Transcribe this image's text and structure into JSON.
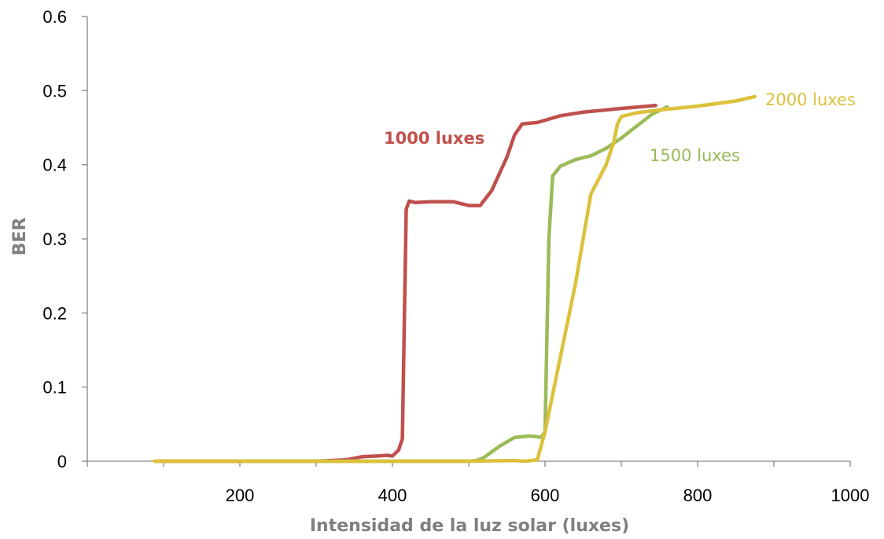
{
  "chart_data": {
    "type": "line",
    "title": "",
    "xlabel": "Intensidad de la luz solar (luxes)",
    "ylabel": "BER",
    "xlim": [
      0,
      1000
    ],
    "ylim": [
      0,
      0.6
    ],
    "x_ticks": [
      200,
      400,
      600,
      800,
      1000
    ],
    "y_ticks": [
      "0",
      "0.1",
      "0.2",
      "0.3",
      "0.4",
      "0.5",
      "0.6"
    ],
    "grid": false,
    "legend": "none (series labelled directly on the plot)",
    "series": [
      {
        "name": "1000 luxes",
        "color": "#c0504d",
        "x": [
          90,
          190,
          300,
          340,
          360,
          380,
          393,
          400,
          408,
          413,
          415,
          418,
          422,
          430,
          450,
          480,
          500,
          515,
          530,
          550,
          560,
          570,
          590,
          620,
          650,
          700,
          745
        ],
        "y": [
          0.0,
          0.0,
          0.0,
          0.002,
          0.006,
          0.007,
          0.008,
          0.007,
          0.015,
          0.03,
          0.15,
          0.34,
          0.351,
          0.349,
          0.35,
          0.35,
          0.345,
          0.345,
          0.365,
          0.41,
          0.44,
          0.455,
          0.457,
          0.466,
          0.471,
          0.476,
          0.48
        ]
      },
      {
        "name": "1500 luxes",
        "color": "#9bbb59",
        "x": [
          190,
          300,
          400,
          500,
          510,
          520,
          540,
          560,
          580,
          590,
          595,
          600,
          605,
          610,
          620,
          640,
          660,
          680,
          700,
          720,
          740,
          760
        ],
        "y": [
          0.0,
          0.0,
          0.0,
          0.0,
          0.001,
          0.005,
          0.02,
          0.032,
          0.034,
          0.033,
          0.032,
          0.04,
          0.3,
          0.385,
          0.398,
          0.407,
          0.412,
          0.422,
          0.436,
          0.452,
          0.468,
          0.478
        ]
      },
      {
        "name": "2000 luxes",
        "color": "#dcc13b",
        "x": [
          88,
          200,
          300,
          400,
          500,
          560,
          575,
          590,
          600,
          620,
          640,
          660,
          680,
          690,
          693,
          695,
          700,
          720,
          750,
          800,
          850,
          875
        ],
        "y": [
          0.0,
          0.0,
          0.0,
          0.0,
          0.0,
          0.001,
          0.0,
          0.002,
          0.04,
          0.14,
          0.24,
          0.36,
          0.4,
          0.43,
          0.445,
          0.455,
          0.465,
          0.47,
          0.474,
          0.479,
          0.486,
          0.492
        ]
      }
    ],
    "annotations": [
      {
        "text": "1000 luxes",
        "series": 0,
        "bold": true
      },
      {
        "text": "1500 luxes",
        "series": 1,
        "bold": false
      },
      {
        "text": "2000 luxes",
        "series": 2,
        "bold": false
      }
    ]
  }
}
